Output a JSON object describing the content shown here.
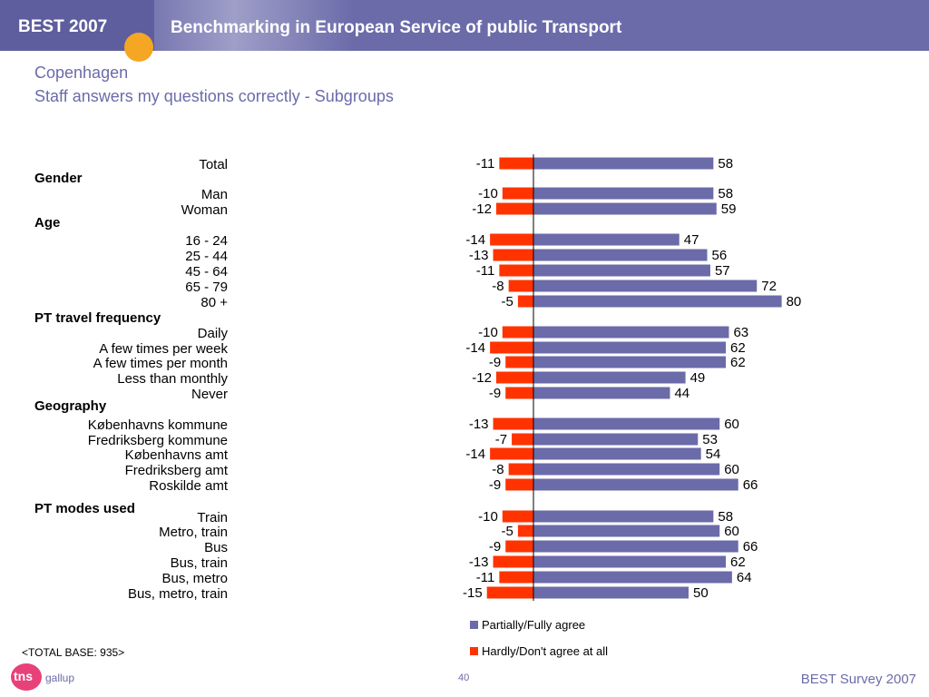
{
  "header": {
    "brand": "BEST 2007",
    "title": "Benchmarking in European Service of public Transport"
  },
  "page_title": {
    "city": "Copenhagen",
    "subtitle": "Staff answers my questions correctly - Subgroups"
  },
  "group_headings": {
    "gender": "Gender",
    "age": "Age",
    "frequency": "PT travel frequency",
    "geography": "Geography",
    "modes": "PT modes used"
  },
  "chart_data": {
    "type": "bar",
    "orientation": "horizontal-diverging",
    "categories": [
      "Total",
      "Man",
      "Woman",
      "16 - 24",
      "25 - 44",
      "45 - 64",
      "65 - 79",
      "80 +",
      "Daily",
      "A few times per week",
      "A few times per month",
      "Less than monthly",
      "Never",
      "Københavns kommune",
      "Fredriksberg kommune",
      "Københavns amt",
      "Fredriksberg amt",
      "Roskilde amt",
      "Train",
      "Metro, train",
      "Bus",
      "Bus, train",
      "Bus, metro",
      "Bus, metro, train"
    ],
    "series": [
      {
        "name": "Partially/Fully agree",
        "color": "#6b6baa",
        "values": [
          58,
          58,
          59,
          47,
          56,
          57,
          72,
          80,
          63,
          62,
          62,
          49,
          44,
          60,
          53,
          54,
          60,
          66,
          58,
          60,
          66,
          62,
          64,
          50
        ]
      },
      {
        "name": "Hardly/Don't agree at all",
        "color": "#ff3300",
        "values": [
          -11,
          -10,
          -12,
          -14,
          -13,
          -11,
          -8,
          -5,
          -10,
          -14,
          -9,
          -12,
          -9,
          -13,
          -7,
          -14,
          -8,
          -9,
          -10,
          -5,
          -9,
          -13,
          -11,
          -15
        ]
      }
    ]
  },
  "footer": {
    "total_base": "<TOTAL BASE: 935>",
    "logo_text": "tns",
    "logo_sub": "gallup",
    "page_number": "40",
    "survey": "BEST Survey 2007"
  }
}
